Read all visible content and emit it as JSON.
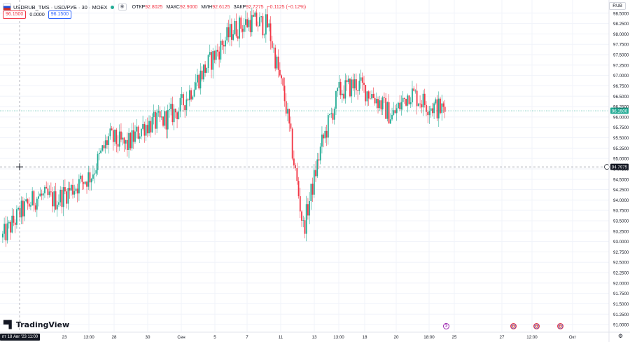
{
  "header": {
    "symbol": "USDRUB_TMS · USD/РУБ · 30 · MOEX",
    "open_label": "ОТКР",
    "open_value": "92.8025",
    "high_label": "МАКС",
    "high_value": "92.9000",
    "low_label": "МИН",
    "low_value": "92.6125",
    "close_label": "ЗАКР",
    "close_value": "92.7275",
    "change_value": "−0.1125 (−0.12%)",
    "sell_price": "96.1500",
    "spread": "0.0000",
    "buy_price": "96.1500",
    "currency": "RUB"
  },
  "crosshair": {
    "date_label": "пт 18 Авг '23",
    "time_label": "11:00",
    "price_label": "94.7975"
  },
  "last_price_label": "96.1500",
  "logo_text": "TradingView",
  "colors": {
    "up": "#22ab94",
    "down": "#f23645",
    "grid": "#f0f3fa",
    "axis_text": "#131722",
    "crosshair": "#9598a1",
    "last_price": "#22ab94"
  },
  "chart_data": {
    "type": "candlestick",
    "timeframe": "30",
    "y_axis": {
      "range": [
        90.9,
        98.75
      ],
      "ticks": [
        "91.0000",
        "91.2500",
        "91.5000",
        "91.7500",
        "92.0000",
        "92.2500",
        "92.5000",
        "92.7500",
        "93.0000",
        "93.2500",
        "93.5000",
        "93.7500",
        "94.0000",
        "94.2500",
        "94.5000",
        "94.7500",
        "95.0000",
        "95.2500",
        "95.5000",
        "95.7500",
        "96.0000",
        "96.2500",
        "96.5000",
        "96.7500",
        "97.0000",
        "97.2500",
        "97.5000",
        "97.7500",
        "98.0000",
        "98.2500",
        "98.5000"
      ]
    },
    "x_axis": {
      "ticks": [
        "23",
        "13:00",
        "28",
        "30",
        "Сен",
        "5",
        "7",
        "11",
        "13",
        "13:00",
        "18",
        "20",
        "18:00",
        "25",
        "27",
        "12:00",
        "Окт"
      ]
    },
    "price_path": [
      {
        "t": "18 Aug",
        "v": 93.1
      },
      {
        "t": "21 Aug",
        "v": 93.7
      },
      {
        "t": "22 Aug",
        "v": 94.1
      },
      {
        "t": "23 Aug",
        "v": 94.0
      },
      {
        "t": "24 Aug",
        "v": 94.3
      },
      {
        "t": "25 Aug",
        "v": 94.6
      },
      {
        "t": "28 Aug",
        "v": 95.5
      },
      {
        "t": "29 Aug",
        "v": 95.3
      },
      {
        "t": "30 Aug",
        "v": 95.8
      },
      {
        "t": "31 Aug",
        "v": 95.9
      },
      {
        "t": "1 Sep",
        "v": 96.2
      },
      {
        "t": "4 Sep",
        "v": 96.9
      },
      {
        "t": "5 Sep",
        "v": 97.5
      },
      {
        "t": "6 Sep",
        "v": 98.1
      },
      {
        "t": "7 Sep",
        "v": 98.3
      },
      {
        "t": "8 Sep",
        "v": 98.2
      },
      {
        "t": "11 Sep",
        "v": 96.3
      },
      {
        "t": "12 Sep",
        "v": 93.3
      },
      {
        "t": "13 Sep",
        "v": 95.3
      },
      {
        "t": "14 Sep",
        "v": 96.6
      },
      {
        "t": "15 Sep",
        "v": 96.8
      },
      {
        "t": "18 Sep",
        "v": 96.5
      },
      {
        "t": "19 Sep",
        "v": 96.0
      },
      {
        "t": "20 Sep",
        "v": 96.6
      },
      {
        "t": "21 Sep",
        "v": 96.3
      },
      {
        "t": "22 Sep",
        "v": 96.15
      }
    ],
    "last_price": 96.15,
    "crosshair_price": 94.7975,
    "grid": true
  }
}
